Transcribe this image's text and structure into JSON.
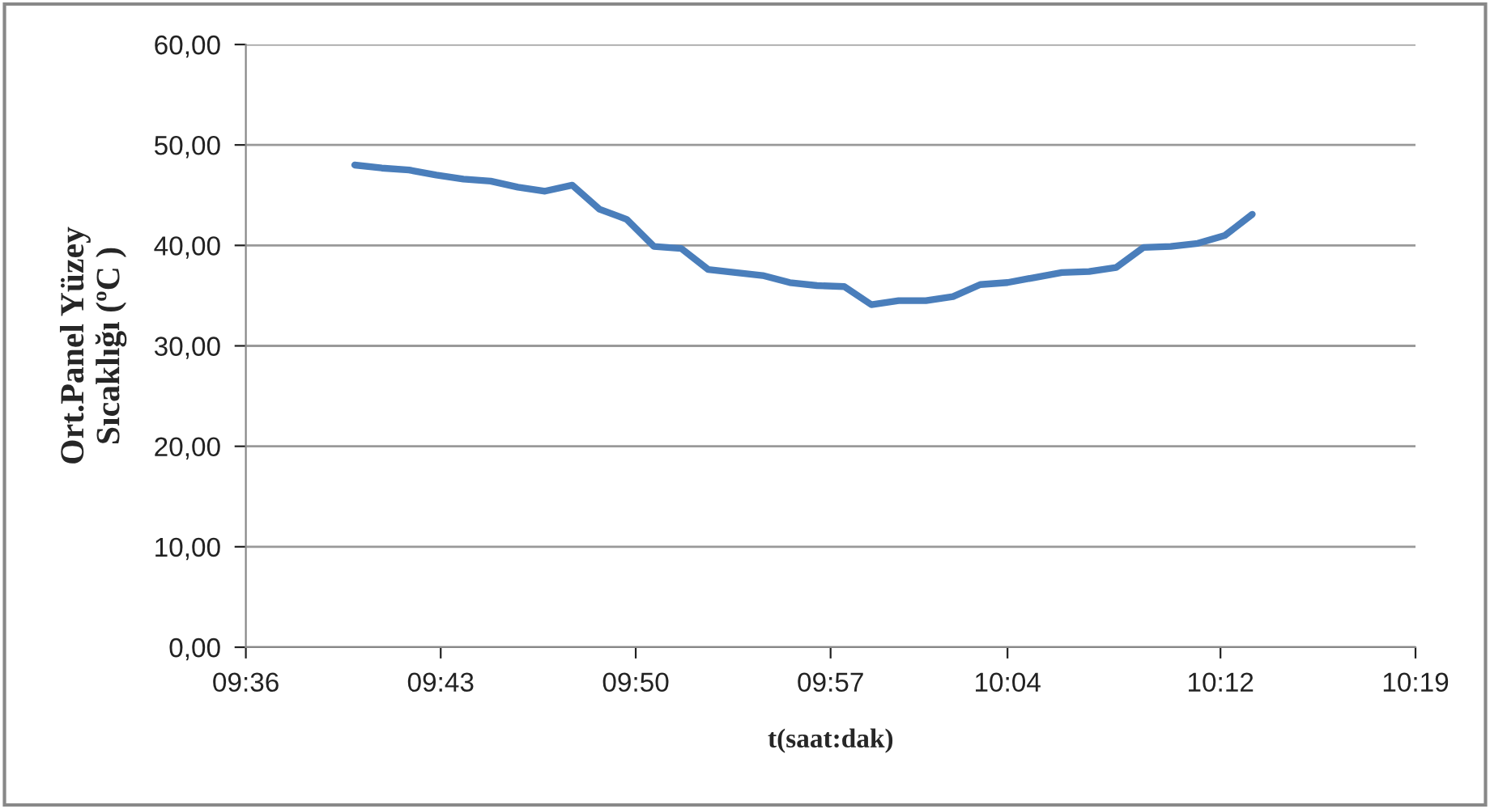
{
  "chart_data": {
    "type": "line",
    "xlabel": "t(saat:dak)",
    "ylabel": "Ort.Panel Yüzey\nSıcaklığı (ºC )",
    "x": [
      9.6667,
      9.6833,
      9.7,
      9.7167,
      9.7333,
      9.75,
      9.7667,
      9.7833,
      9.8,
      9.8167,
      9.8333,
      9.85,
      9.8667,
      9.8833,
      9.9,
      9.9167,
      9.9333,
      9.95,
      9.9667,
      9.9833,
      10.0,
      10.0167,
      10.0333,
      10.05,
      10.0667,
      10.0833,
      10.1,
      10.1167,
      10.1333,
      10.15,
      10.1667,
      10.1833,
      10.2,
      10.2167
    ],
    "series": [
      {
        "color": "#4a7ebb",
        "values": [
          48.0,
          47.7,
          47.5,
          47.0,
          46.6,
          46.4,
          45.8,
          45.4,
          46.0,
          43.6,
          42.6,
          39.9,
          39.7,
          37.6,
          37.3,
          37.0,
          36.3,
          36.0,
          35.9,
          34.1,
          34.5,
          34.5,
          34.9,
          36.1,
          36.3,
          36.8,
          37.3,
          37.4,
          37.8,
          39.8,
          39.9,
          40.2,
          41.0,
          43.1
        ]
      }
    ],
    "xlim": [
      9.6,
      10.3167
    ],
    "xticks": [
      {
        "value": 9.6,
        "label": "09:36"
      },
      {
        "value": 9.7194,
        "label": "09:43"
      },
      {
        "value": 9.8389,
        "label": "09:50"
      },
      {
        "value": 9.9583,
        "label": "09:57"
      },
      {
        "value": 10.0667,
        "label": "10:04"
      },
      {
        "value": 10.1972,
        "label": "10:12"
      },
      {
        "value": 10.3167,
        "label": "10:19"
      }
    ],
    "ylim": [
      0,
      60
    ],
    "yticks": [
      {
        "value": 0,
        "label": "0,00"
      },
      {
        "value": 10,
        "label": "10,00"
      },
      {
        "value": 20,
        "label": "20,00"
      },
      {
        "value": 30,
        "label": "30,00"
      },
      {
        "value": 40,
        "label": "40,00"
      },
      {
        "value": 50,
        "label": "50,00"
      },
      {
        "value": 60,
        "label": "60,00"
      }
    ],
    "grid": "y",
    "marker": "none",
    "line_style": "solid"
  }
}
